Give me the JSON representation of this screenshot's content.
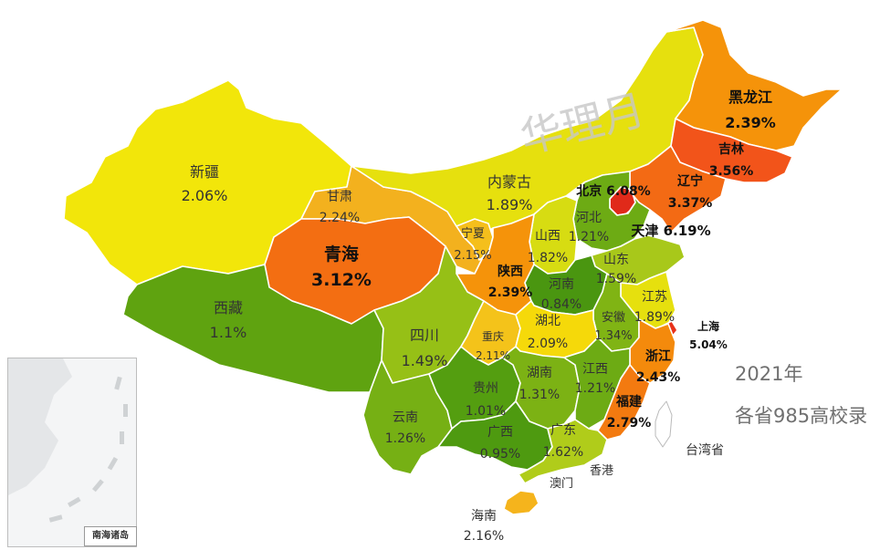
{
  "chart_data": {
    "type": "choropleth",
    "title": "",
    "year": "2021年",
    "subtitle": "各省985高校录",
    "watermark": "华理月",
    "inset_label": "南海诸岛",
    "regions": [
      {
        "name": "黑龙江",
        "value": "2.39%",
        "color": "#f5930a"
      },
      {
        "name": "吉林",
        "value": "3.56%",
        "color": "#f2541a"
      },
      {
        "name": "辽宁",
        "value": "3.37%",
        "color": "#f36a14"
      },
      {
        "name": "内蒙古",
        "value": "1.89%",
        "color": "#e6e00e"
      },
      {
        "name": "新疆",
        "value": "2.06%",
        "color": "#f2e60a"
      },
      {
        "name": "甘肃",
        "value": "2.24%",
        "color": "#f3b11e"
      },
      {
        "name": "青海",
        "value": "3.12%",
        "color": "#f36e12"
      },
      {
        "name": "西藏",
        "value": "1.1%",
        "color": "#5fa310"
      },
      {
        "name": "宁夏",
        "value": "2.15%",
        "color": "#f5bf1c"
      },
      {
        "name": "北京",
        "value": "6.08%",
        "color": "#e02a1a"
      },
      {
        "name": "天津",
        "value": "6.19%",
        "color": "#e02a1a"
      },
      {
        "name": "河北",
        "value": "1.21%",
        "color": "#6dab14"
      },
      {
        "name": "山西",
        "value": "1.82%",
        "color": "#d7dc12"
      },
      {
        "name": "陕西",
        "value": "2.39%",
        "color": "#f5930a"
      },
      {
        "name": "山东",
        "value": "1.59%",
        "color": "#a8c81a"
      },
      {
        "name": "河南",
        "value": "0.84%",
        "color": "#4a9610"
      },
      {
        "name": "江苏",
        "value": "1.89%",
        "color": "#e6e00e"
      },
      {
        "name": "安徽",
        "value": "1.34%",
        "color": "#80b414"
      },
      {
        "name": "上海",
        "value": "5.04%",
        "color": "#e8321a"
      },
      {
        "name": "四川",
        "value": "1.49%",
        "color": "#96c016"
      },
      {
        "name": "重庆",
        "value": "2.11%",
        "color": "#f4c31a"
      },
      {
        "name": "湖北",
        "value": "2.09%",
        "color": "#f5d90a"
      },
      {
        "name": "浙江",
        "value": "2.43%",
        "color": "#f48a0c"
      },
      {
        "name": "云南",
        "value": "1.26%",
        "color": "#76b014"
      },
      {
        "name": "贵州",
        "value": "1.01%",
        "color": "#549e10"
      },
      {
        "name": "湖南",
        "value": "1.31%",
        "color": "#7cb214"
      },
      {
        "name": "江西",
        "value": "1.21%",
        "color": "#6dab14"
      },
      {
        "name": "福建",
        "value": "2.79%",
        "color": "#f37a10"
      },
      {
        "name": "广西",
        "value": "0.95%",
        "color": "#4e9a10"
      },
      {
        "name": "广东",
        "value": "1.62%",
        "color": "#b0cc1a"
      },
      {
        "name": "海南",
        "value": "2.16%",
        "color": "#f5b41c"
      },
      {
        "name": "台湾省",
        "value": "",
        "color": "#ffffff"
      },
      {
        "name": "香港",
        "value": "",
        "color": "#ffffff"
      },
      {
        "name": "澳门",
        "value": "",
        "color": "#ffffff"
      }
    ]
  }
}
